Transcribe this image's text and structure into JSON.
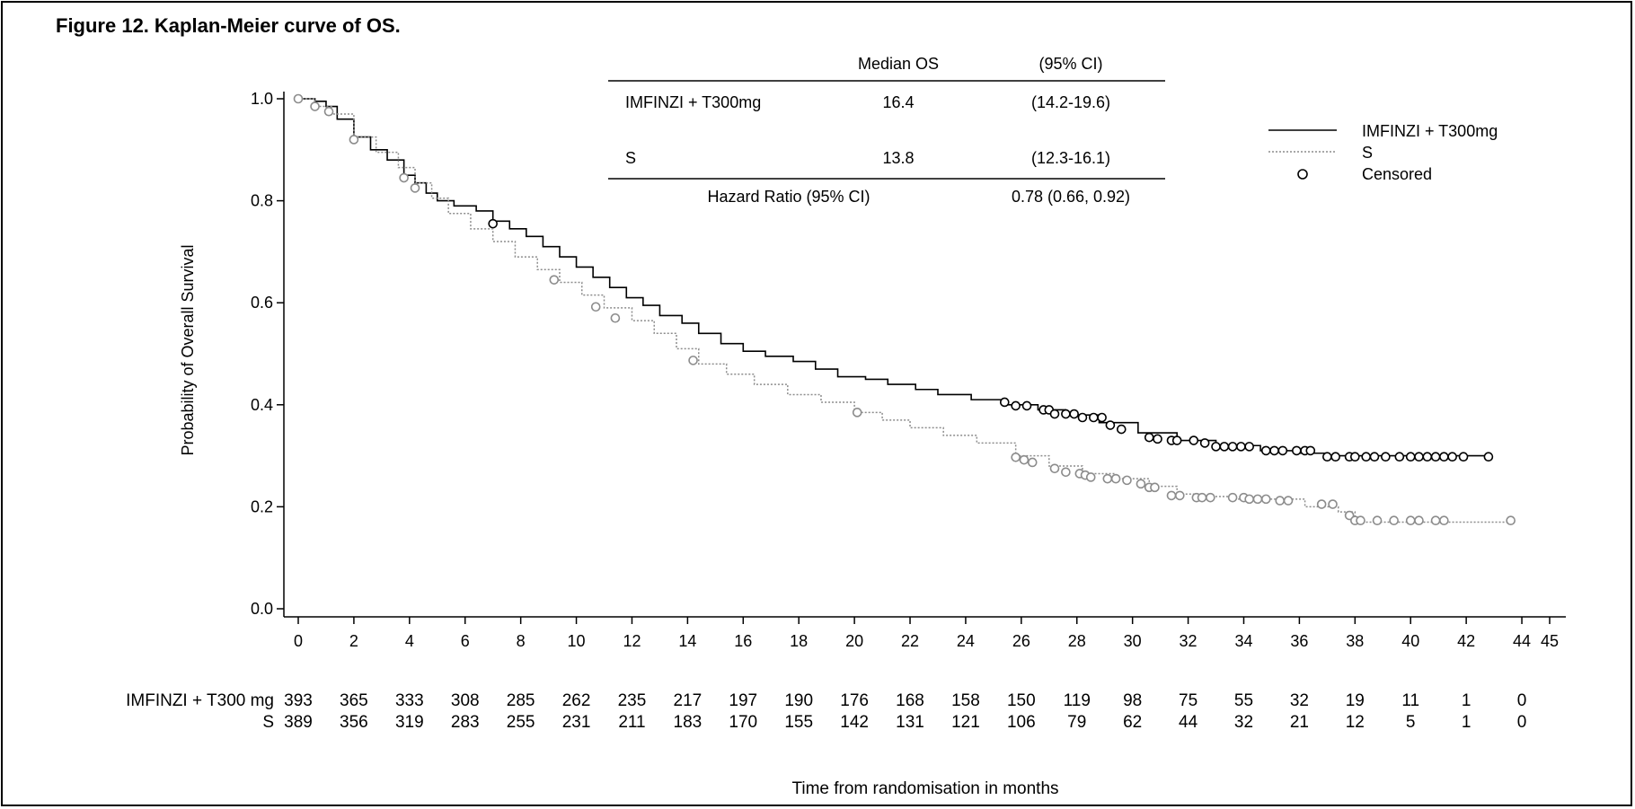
{
  "figure": {
    "number": "Figure 12.",
    "caption": "Kaplan-Meier curve of OS."
  },
  "colors": {
    "treatment": "#000000",
    "comparator": "#8c8c8c"
  },
  "stats_table": {
    "header": {
      "median": "Median OS",
      "ci": "(95% CI)"
    },
    "rows": [
      {
        "arm": "IMFINZI + T300mg",
        "median": "16.4",
        "ci": "(14.2-19.6)"
      },
      {
        "arm": "S",
        "median": "13.8",
        "ci": "(12.3-16.1)"
      }
    ],
    "hr_label": "Hazard Ratio (95% CI)",
    "hr_value": "0.78 (0.66, 0.92)"
  },
  "legend": {
    "items": [
      {
        "label": "IMFINZI + T300mg",
        "style": "solid"
      },
      {
        "label": "S",
        "style": "dotted"
      },
      {
        "label": "Censored",
        "style": "circle"
      }
    ],
    "position": "top-right"
  },
  "risk_table": {
    "rows": [
      {
        "label": "IMFINZI + T300 mg",
        "counts": [
          "393",
          "365",
          "333",
          "308",
          "285",
          "262",
          "235",
          "217",
          "197",
          "190",
          "176",
          "168",
          "158",
          "150",
          "119",
          "98",
          "75",
          "55",
          "32",
          "19",
          "11",
          "1",
          "0"
        ]
      },
      {
        "label": "S",
        "counts": [
          "389",
          "356",
          "319",
          "283",
          "255",
          "231",
          "211",
          "183",
          "170",
          "155",
          "142",
          "131",
          "121",
          "106",
          "79",
          "62",
          "44",
          "32",
          "21",
          "12",
          "5",
          "1",
          "0"
        ]
      }
    ]
  },
  "chart_data": {
    "type": "line",
    "title": "",
    "xlabel": "Time from randomisation in months",
    "ylabel": "Probability of Overall Survival",
    "xlim": [
      0,
      45
    ],
    "ylim": [
      0,
      1
    ],
    "x_ticks": [
      0,
      2,
      4,
      6,
      8,
      10,
      12,
      14,
      16,
      18,
      20,
      22,
      24,
      26,
      28,
      30,
      32,
      34,
      36,
      38,
      40,
      42,
      44,
      45
    ],
    "y_ticks": [
      0.0,
      0.2,
      0.4,
      0.6,
      0.8,
      1.0
    ],
    "y_tick_labels": [
      "0.0",
      "0.2",
      "0.4",
      "0.6",
      "0.8",
      "1.0"
    ],
    "grid": false,
    "series": [
      {
        "name": "IMFINZI + T300mg",
        "style": "solid-step",
        "x": [
          0,
          0.6,
          1.0,
          1.4,
          2.0,
          2.6,
          3.2,
          3.8,
          4.2,
          4.6,
          5.0,
          5.6,
          6.4,
          7.0,
          7.6,
          8.2,
          8.8,
          9.4,
          10.0,
          10.6,
          11.2,
          11.8,
          12.4,
          13.0,
          13.8,
          14.4,
          15.2,
          16.0,
          16.8,
          17.8,
          18.6,
          19.4,
          20.4,
          21.2,
          22.2,
          23.0,
          24.2,
          25.4,
          26.6,
          27.6,
          28.8,
          30.2,
          31.6,
          33.0,
          34.6,
          36.0,
          37.0,
          38.4,
          40.0,
          42.8
        ],
        "y": [
          1.0,
          0.995,
          0.985,
          0.96,
          0.925,
          0.9,
          0.88,
          0.85,
          0.835,
          0.815,
          0.8,
          0.79,
          0.78,
          0.76,
          0.745,
          0.73,
          0.71,
          0.69,
          0.67,
          0.65,
          0.63,
          0.61,
          0.595,
          0.575,
          0.56,
          0.54,
          0.52,
          0.505,
          0.495,
          0.485,
          0.47,
          0.455,
          0.45,
          0.44,
          0.43,
          0.42,
          0.41,
          0.4,
          0.39,
          0.38,
          0.365,
          0.345,
          0.33,
          0.32,
          0.31,
          0.305,
          0.3,
          0.3,
          0.3,
          0.3
        ],
        "censored": {
          "x": [
            7.0,
            25.4,
            25.8,
            26.2,
            26.8,
            27.0,
            27.2,
            27.6,
            27.9,
            28.2,
            28.6,
            28.9,
            29.2,
            29.6,
            30.6,
            30.9,
            31.4,
            31.6,
            32.2,
            32.6,
            33.0,
            33.3,
            33.6,
            33.9,
            34.2,
            34.8,
            35.1,
            35.4,
            35.9,
            36.2,
            36.4,
            37.0,
            37.3,
            37.8,
            38.0,
            38.4,
            38.7,
            39.1,
            39.6,
            40.0,
            40.3,
            40.6,
            40.9,
            41.2,
            41.5,
            41.9,
            42.8
          ],
          "y": [
            0.755,
            0.405,
            0.398,
            0.398,
            0.39,
            0.39,
            0.382,
            0.382,
            0.382,
            0.375,
            0.375,
            0.375,
            0.36,
            0.352,
            0.336,
            0.333,
            0.33,
            0.33,
            0.33,
            0.325,
            0.318,
            0.318,
            0.318,
            0.318,
            0.318,
            0.31,
            0.31,
            0.31,
            0.31,
            0.31,
            0.31,
            0.298,
            0.298,
            0.298,
            0.298,
            0.298,
            0.298,
            0.298,
            0.298,
            0.298,
            0.298,
            0.298,
            0.298,
            0.298,
            0.298,
            0.298,
            0.298
          ]
        }
      },
      {
        "name": "S",
        "style": "dotted-step",
        "x": [
          0,
          0.6,
          1.2,
          2.0,
          2.8,
          3.6,
          4.2,
          4.8,
          5.4,
          6.2,
          7.0,
          7.8,
          8.6,
          9.4,
          10.2,
          11.0,
          12.0,
          12.8,
          13.6,
          14.4,
          15.4,
          16.4,
          17.6,
          18.8,
          20.0,
          21.0,
          22.0,
          23.2,
          24.4,
          25.8,
          27.0,
          28.2,
          29.4,
          30.6,
          31.6,
          32.4,
          33.6,
          35.0,
          36.2,
          37.4,
          38.0,
          39.0,
          40.2,
          41.2,
          43.6
        ],
        "y": [
          1.0,
          0.985,
          0.97,
          0.925,
          0.895,
          0.865,
          0.835,
          0.805,
          0.775,
          0.745,
          0.72,
          0.69,
          0.665,
          0.64,
          0.615,
          0.59,
          0.565,
          0.54,
          0.51,
          0.48,
          0.46,
          0.44,
          0.42,
          0.405,
          0.385,
          0.37,
          0.355,
          0.34,
          0.325,
          0.3,
          0.28,
          0.265,
          0.255,
          0.24,
          0.225,
          0.22,
          0.215,
          0.215,
          0.2,
          0.19,
          0.17,
          0.17,
          0.17,
          0.17,
          0.17
        ],
        "censored": {
          "x": [
            0,
            0.6,
            1.1,
            2.0,
            3.8,
            4.2,
            9.2,
            10.7,
            11.4,
            14.2,
            20.1,
            25.8,
            26.1,
            26.4,
            27.2,
            27.6,
            28.1,
            28.3,
            28.5,
            29.1,
            29.4,
            29.8,
            30.3,
            30.6,
            30.8,
            31.4,
            31.7,
            32.3,
            32.5,
            32.8,
            33.6,
            34.0,
            34.2,
            34.5,
            34.8,
            35.3,
            35.6,
            36.8,
            37.2,
            37.8,
            38.0,
            38.2,
            38.8,
            39.4,
            40.0,
            40.3,
            40.9,
            41.2,
            43.6
          ],
          "y": [
            1.0,
            0.985,
            0.975,
            0.92,
            0.845,
            0.825,
            0.645,
            0.592,
            0.57,
            0.487,
            0.385,
            0.297,
            0.292,
            0.287,
            0.275,
            0.268,
            0.265,
            0.262,
            0.258,
            0.255,
            0.255,
            0.252,
            0.245,
            0.238,
            0.238,
            0.222,
            0.222,
            0.218,
            0.218,
            0.218,
            0.218,
            0.218,
            0.215,
            0.215,
            0.215,
            0.212,
            0.212,
            0.205,
            0.205,
            0.183,
            0.173,
            0.173,
            0.173,
            0.173,
            0.173,
            0.173,
            0.173,
            0.173,
            0.173
          ]
        }
      }
    ]
  }
}
